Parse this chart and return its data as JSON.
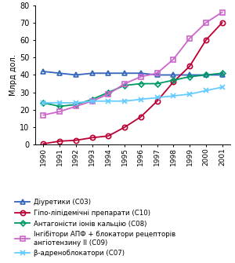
{
  "years": [
    1990,
    1991,
    1992,
    1993,
    1994,
    1995,
    1996,
    1997,
    1998,
    1999,
    2000,
    2001
  ],
  "series": {
    "C03": {
      "label": "Діуретики (C03)",
      "color": "#3366bb",
      "marker": "^",
      "markersize": 4.5,
      "values": [
        42,
        41,
        40,
        41,
        41,
        41,
        41,
        40,
        40,
        40,
        40,
        40
      ]
    },
    "C10": {
      "label": "Гіпо-ліпідемічні препарати (C10)",
      "color": "#bb0033",
      "marker": "o",
      "markersize": 4.5,
      "values": [
        0.5,
        2,
        2.5,
        4,
        5,
        10,
        16,
        25,
        36,
        45,
        60,
        70
      ]
    },
    "C08": {
      "label": "Антагоністи іонів кальцію (C08)",
      "color": "#009966",
      "marker": "D",
      "markersize": 3.5,
      "values": [
        24,
        22,
        23,
        26,
        30,
        34,
        35,
        35,
        37,
        39,
        40,
        41
      ]
    },
    "C09": {
      "label": "Інгібітори АПФ + блокатори рецепторів\nангіотензину II (C09)",
      "color": "#cc66cc",
      "marker": "s",
      "markersize": 4.5,
      "values": [
        17,
        19,
        22,
        25,
        29,
        35,
        39,
        41,
        49,
        61,
        70,
        76
      ]
    },
    "C07": {
      "label": "β-адреноблокатори (C07)",
      "color": "#66ccff",
      "marker": "x",
      "markersize": 5,
      "values": [
        24,
        24,
        24,
        25,
        25,
        25,
        26,
        27,
        28,
        29,
        31,
        33
      ]
    }
  },
  "ylabel": "Млрд дол.",
  "ylim": [
    0,
    80
  ],
  "yticks": [
    0,
    10,
    20,
    30,
    40,
    50,
    60,
    70,
    80
  ],
  "bg_color": "#ffffff"
}
